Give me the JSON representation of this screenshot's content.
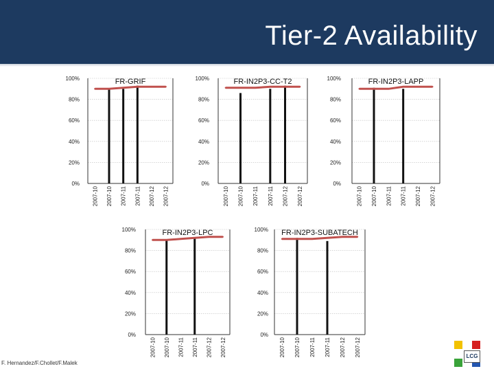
{
  "title": "Tier-2 Availability",
  "footer": "F. Hernandez/F.Chollet/F.Malek",
  "logo_text": "LCG",
  "colors": {
    "header_bg": "#1d3a60",
    "bar": "#111111",
    "line": "#c0504d",
    "grid": "#bbbbbb"
  },
  "chart_data": [
    {
      "type": "bar",
      "title": "FR-GRIF",
      "categories": [
        "2007-10",
        "2007-10",
        "2007-11",
        "2007-11",
        "2007-12",
        "2007-12"
      ],
      "values": [
        0,
        90,
        90,
        93,
        0,
        0
      ],
      "line_values": [
        90,
        90,
        91,
        92,
        92,
        92
      ],
      "yticks": [
        "0%",
        "20%",
        "40%",
        "60%",
        "80%",
        "100%"
      ],
      "ylim": [
        0,
        100
      ],
      "grid": true
    },
    {
      "type": "bar",
      "title": "FR-IN2P3-CC-T2",
      "categories": [
        "2007-10",
        "2007-10",
        "2007-11",
        "2007-11",
        "2007-12",
        "2007-12"
      ],
      "values": [
        0,
        86,
        0,
        90,
        93,
        0
      ],
      "line_values": [
        91,
        91,
        91,
        92,
        92,
        92
      ],
      "yticks": [
        "0%",
        "20%",
        "40%",
        "60%",
        "80%",
        "100%"
      ],
      "ylim": [
        0,
        100
      ],
      "grid": true
    },
    {
      "type": "bar",
      "title": "FR-IN2P3-LAPP",
      "categories": [
        "2007-10",
        "2007-10",
        "2007-11",
        "2007-11",
        "2007-12",
        "2007-12"
      ],
      "values": [
        0,
        91,
        0,
        90,
        0,
        0
      ],
      "line_values": [
        90,
        90,
        90,
        92,
        92,
        92
      ],
      "yticks": [
        "0%",
        "20%",
        "40%",
        "60%",
        "80%",
        "100%"
      ],
      "ylim": [
        0,
        100
      ],
      "grid": true
    },
    {
      "type": "bar",
      "title": "FR-IN2P3-LPC",
      "categories": [
        "2007-10",
        "2007-10",
        "2007-11",
        "2007-11",
        "2007-12",
        "2007-12"
      ],
      "values": [
        0,
        90,
        0,
        92,
        0,
        0
      ],
      "line_values": [
        90,
        90,
        91,
        92,
        93,
        93
      ],
      "yticks": [
        "0%",
        "20%",
        "40%",
        "60%",
        "80%",
        "100%"
      ],
      "ylim": [
        0,
        100
      ],
      "grid": true
    },
    {
      "type": "bar",
      "title": "FR-IN2P3-SUBATECH",
      "categories": [
        "2007-10",
        "2007-10",
        "2007-11",
        "2007-11",
        "2007-12",
        "2007-12"
      ],
      "values": [
        0,
        92,
        0,
        89,
        0,
        0
      ],
      "line_values": [
        91,
        91,
        91,
        92,
        93,
        93
      ],
      "yticks": [
        "0%",
        "20%",
        "40%",
        "60%",
        "80%",
        "100%"
      ],
      "ylim": [
        0,
        100
      ],
      "grid": true
    }
  ]
}
